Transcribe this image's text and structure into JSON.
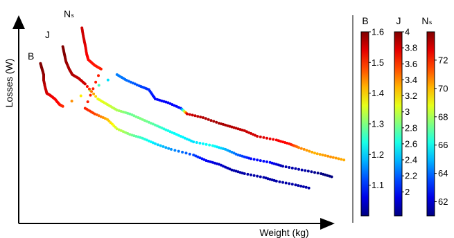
{
  "chart_data": {
    "type": "scatter",
    "title": "",
    "xlabel": "Weight (kg)",
    "ylabel": "Losses (W)",
    "axis_scale": "normalized (no tick labels)",
    "xlim": [
      0,
      1
    ],
    "ylim": [
      0,
      1
    ],
    "grid": false,
    "series": [
      {
        "name": "B",
        "color_by": "B",
        "points": [
          [
            0.04,
            0.79,
            1.6
          ],
          [
            0.045,
            0.76,
            1.6
          ],
          [
            0.05,
            0.73,
            1.59
          ],
          [
            0.05,
            0.7,
            1.58
          ],
          [
            0.055,
            0.66,
            1.56
          ],
          [
            0.06,
            0.63,
            1.55
          ],
          [
            0.07,
            0.62,
            1.54
          ],
          [
            0.085,
            0.6,
            1.53
          ],
          [
            0.1,
            0.57,
            1.52
          ],
          [
            0.11,
            0.56,
            1.5
          ],
          [
            0.28,
            0.73,
            1.15
          ],
          [
            0.31,
            0.7,
            1.14
          ],
          [
            0.35,
            0.67,
            1.12
          ],
          [
            0.38,
            0.65,
            1.1
          ],
          [
            0.4,
            0.6,
            1.08
          ],
          [
            0.44,
            0.58,
            1.07
          ],
          [
            0.48,
            0.55,
            1.08
          ],
          [
            0.5,
            0.52,
            1.55
          ],
          [
            0.55,
            0.5,
            1.57
          ],
          [
            0.6,
            0.47,
            1.58
          ],
          [
            0.64,
            0.45,
            1.57
          ],
          [
            0.68,
            0.43,
            1.56
          ],
          [
            0.72,
            0.4,
            1.55
          ],
          [
            0.78,
            0.38,
            1.53
          ],
          [
            0.82,
            0.36,
            1.52
          ],
          [
            0.85,
            0.34,
            1.45
          ],
          [
            0.9,
            0.31,
            1.42
          ],
          [
            0.95,
            0.29,
            1.44
          ],
          [
            1.0,
            0.27,
            1.42
          ]
        ]
      },
      {
        "name": "J",
        "color_by": "J",
        "points": [
          [
            0.11,
            0.88,
            4.0
          ],
          [
            0.115,
            0.84,
            4.0
          ],
          [
            0.12,
            0.8,
            3.95
          ],
          [
            0.13,
            0.76,
            3.9
          ],
          [
            0.14,
            0.73,
            3.9
          ],
          [
            0.16,
            0.71,
            3.85
          ],
          [
            0.18,
            0.68,
            3.82
          ],
          [
            0.22,
            0.6,
            3.1
          ],
          [
            0.25,
            0.57,
            3.05
          ],
          [
            0.28,
            0.54,
            2.95
          ],
          [
            0.32,
            0.52,
            2.8
          ],
          [
            0.36,
            0.49,
            2.85
          ],
          [
            0.4,
            0.46,
            2.75
          ],
          [
            0.44,
            0.43,
            2.6
          ],
          [
            0.48,
            0.4,
            2.55
          ],
          [
            0.52,
            0.37,
            2.5
          ],
          [
            0.58,
            0.35,
            2.6
          ],
          [
            0.62,
            0.33,
            2.4
          ],
          [
            0.66,
            0.3,
            2.2
          ],
          [
            0.7,
            0.28,
            2.0
          ],
          [
            0.76,
            0.26,
            2.0
          ],
          [
            0.8,
            0.24,
            1.8
          ],
          [
            0.86,
            0.22,
            1.8
          ],
          [
            0.92,
            0.2,
            1.7
          ],
          [
            0.96,
            0.18,
            1.7
          ]
        ]
      },
      {
        "name": "Nₛ",
        "color_by": "Ns",
        "points": [
          [
            0.17,
            0.98,
            73
          ],
          [
            0.175,
            0.93,
            73
          ],
          [
            0.18,
            0.89,
            72.8
          ],
          [
            0.185,
            0.84,
            72.5
          ],
          [
            0.19,
            0.81,
            72.3
          ],
          [
            0.21,
            0.78,
            72.1
          ],
          [
            0.23,
            0.76,
            72
          ],
          [
            0.18,
            0.55,
            72
          ],
          [
            0.21,
            0.52,
            71.5
          ],
          [
            0.25,
            0.49,
            70
          ],
          [
            0.28,
            0.44,
            68.5
          ],
          [
            0.32,
            0.41,
            67.5
          ],
          [
            0.36,
            0.39,
            66.5
          ],
          [
            0.4,
            0.36,
            65.5
          ],
          [
            0.45,
            0.33,
            64.5
          ],
          [
            0.52,
            0.3,
            63.5
          ],
          [
            0.56,
            0.27,
            62.5
          ],
          [
            0.6,
            0.25,
            62
          ],
          [
            0.64,
            0.22,
            61.5
          ],
          [
            0.68,
            0.2,
            61.5
          ],
          [
            0.74,
            0.18,
            61.5
          ],
          [
            0.78,
            0.16,
            61.5
          ],
          [
            0.84,
            0.14,
            61.5
          ],
          [
            0.89,
            0.12,
            61.5
          ]
        ]
      }
    ],
    "curve_labels": [
      "B",
      "J",
      "Nₛ"
    ],
    "colorbars": [
      {
        "title": "B",
        "min": 1.0,
        "max": 1.6,
        "ticks": [
          "1.6",
          "1.5",
          "1.4",
          "1.3",
          "1.2",
          "1.1"
        ],
        "tick_values": [
          1.6,
          1.5,
          1.4,
          1.3,
          1.2,
          1.1
        ]
      },
      {
        "title": "J",
        "min": 1.7,
        "max": 4.0,
        "ticks": [
          "4",
          "3.8",
          "3.6",
          "3.4",
          "3.2",
          "3",
          "2.8",
          "2.6",
          "2.4",
          "2.2",
          "2"
        ],
        "tick_values": [
          4.0,
          3.8,
          3.6,
          3.4,
          3.2,
          3.0,
          2.8,
          2.6,
          2.4,
          2.2,
          2.0
        ]
      },
      {
        "title": "Nₛ",
        "min": 61.0,
        "max": 74.0,
        "ticks": [
          "72",
          "70",
          "68",
          "66",
          "64",
          "62"
        ],
        "tick_values": [
          72,
          70,
          68,
          66,
          64,
          62
        ]
      }
    ],
    "colormap": "jet"
  }
}
